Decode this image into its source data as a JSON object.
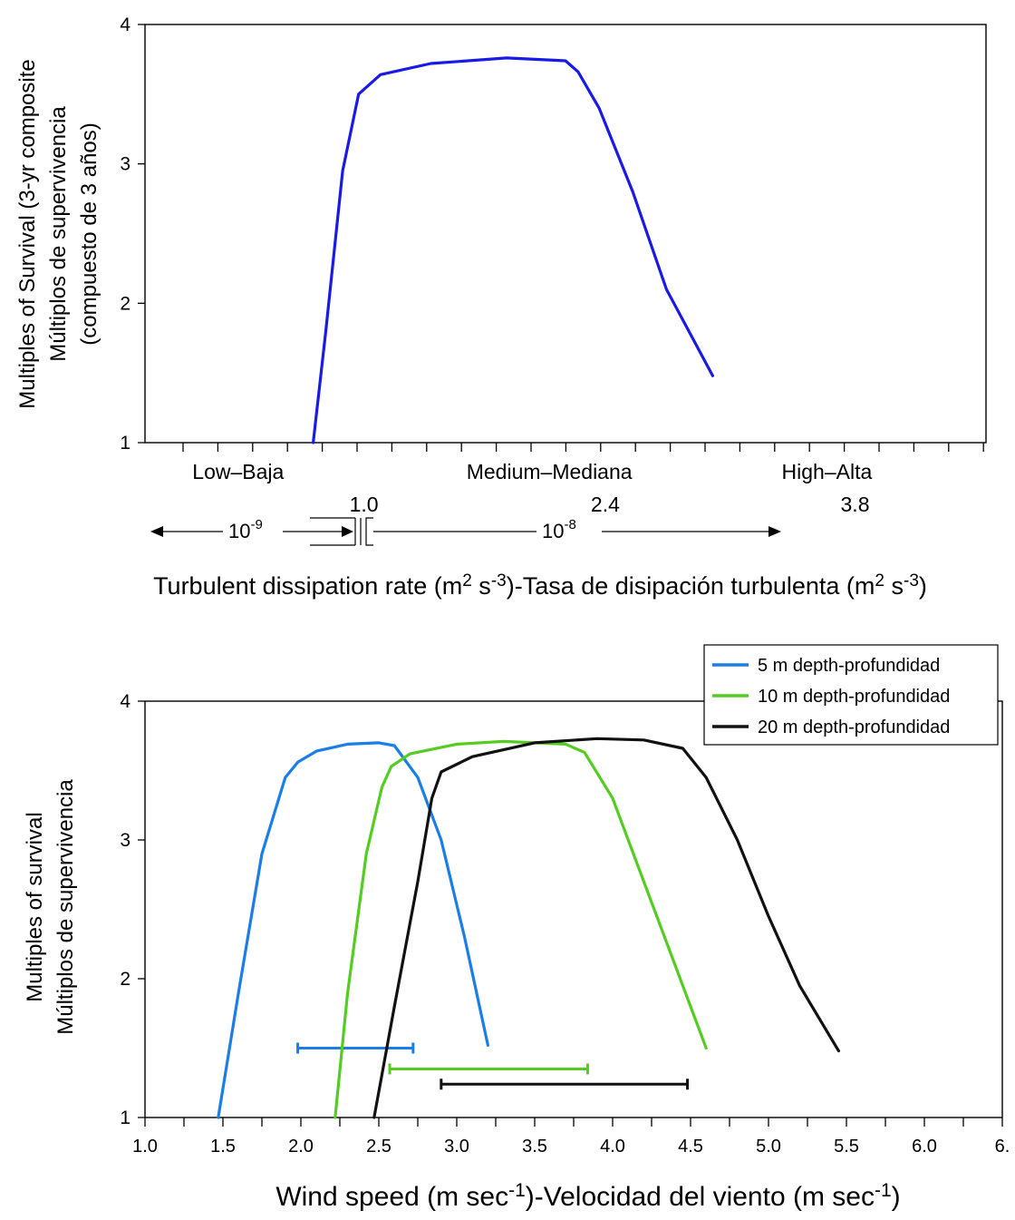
{
  "chart_data": [
    {
      "type": "line",
      "ylabel_lines": [
        "Multiples of Survival (3-yr composite",
        "Múltiplos de supervivencia",
        "(compuesto de 3 años)"
      ],
      "ylim": [
        1,
        4
      ],
      "y_ticks": [
        "1",
        "2",
        "3",
        "4"
      ],
      "xlim": [
        0,
        1
      ],
      "category_labels": [
        {
          "text": "Low–Baja",
          "x": 0.1
        },
        {
          "text": "Medium–Mediana",
          "x": 0.47
        },
        {
          "text": "High–Alta",
          "x": 0.8
        }
      ],
      "value_labels": [
        {
          "text": "1.0",
          "x": 0.256
        },
        {
          "text": "2.4",
          "x": 0.543
        },
        {
          "text": "3.8",
          "x": 0.84
        }
      ],
      "rate_labels": {
        "left_base": "10",
        "left_exp": "-9",
        "right_base": "10",
        "right_exp": "-8"
      },
      "xlabel": {
        "part1": "Turbulent dissipation rate (m",
        "sup1": "2",
        "part2": " s",
        "sup2": "-3",
        "part3": ")-Tasa de disipación turbulenta  (m",
        "sup3": "2",
        "part4": " s",
        "sup4": "-3",
        "part5": ")"
      },
      "series": [
        {
          "color": "#1a1ae6",
          "points": [
            [
              0.2,
              1.0
            ],
            [
              0.215,
              1.8
            ],
            [
              0.235,
              2.95
            ],
            [
              0.254,
              3.5
            ],
            [
              0.28,
              3.64
            ],
            [
              0.34,
              3.72
            ],
            [
              0.43,
              3.76
            ],
            [
              0.5,
              3.74
            ],
            [
              0.515,
              3.66
            ],
            [
              0.54,
              3.4
            ],
            [
              0.58,
              2.8
            ],
            [
              0.62,
              2.1
            ],
            [
              0.675,
              1.48
            ]
          ]
        }
      ]
    },
    {
      "type": "line",
      "ylabel_lines": [
        "Multiples of survival",
        "Múltiplos de supervivencia"
      ],
      "ylim": [
        1,
        4
      ],
      "y_ticks": [
        "1",
        "2",
        "3",
        "4"
      ],
      "xlim": [
        1.0,
        6.5
      ],
      "x_ticks": [
        "1.0",
        "1.5",
        "2.0",
        "2.5",
        "3.0",
        "3.5",
        "4.0",
        "4.5",
        "5.0",
        "5.5",
        "6.0",
        "6."
      ],
      "xlabel": {
        "part1": "Wind speed (m sec",
        "sup1": "-1",
        "part2": ")-Velocidad del viento (m sec",
        "sup2": "-1",
        "part3": ")"
      },
      "legend_position": "top-right",
      "series": [
        {
          "name": "5 m depth-profundidad",
          "color": "#1a7ee6",
          "points": [
            [
              1.47,
              1.0
            ],
            [
              1.6,
              1.9
            ],
            [
              1.75,
              2.9
            ],
            [
              1.9,
              3.45
            ],
            [
              1.98,
              3.56
            ],
            [
              2.1,
              3.64
            ],
            [
              2.3,
              3.69
            ],
            [
              2.5,
              3.7
            ],
            [
              2.6,
              3.68
            ],
            [
              2.75,
              3.45
            ],
            [
              2.9,
              3.0
            ],
            [
              3.05,
              2.3
            ],
            [
              3.2,
              1.52
            ]
          ],
          "range": [
            1.98,
            2.72
          ],
          "range_y": 1.5
        },
        {
          "name": "10 m depth-profundidad",
          "color": "#55cc22",
          "points": [
            [
              2.22,
              1.0
            ],
            [
              2.3,
              1.9
            ],
            [
              2.42,
              2.9
            ],
            [
              2.52,
              3.38
            ],
            [
              2.58,
              3.53
            ],
            [
              2.7,
              3.62
            ],
            [
              3.0,
              3.69
            ],
            [
              3.3,
              3.71
            ],
            [
              3.7,
              3.69
            ],
            [
              3.82,
              3.63
            ],
            [
              4.0,
              3.3
            ],
            [
              4.2,
              2.7
            ],
            [
              4.4,
              2.1
            ],
            [
              4.6,
              1.5
            ]
          ],
          "range": [
            2.57,
            3.84
          ],
          "range_y": 1.35
        },
        {
          "name": "20 m depth-profundidad",
          "color": "#111111",
          "points": [
            [
              2.47,
              1.0
            ],
            [
              2.6,
              1.8
            ],
            [
              2.75,
              2.7
            ],
            [
              2.84,
              3.3
            ],
            [
              2.9,
              3.49
            ],
            [
              3.1,
              3.6
            ],
            [
              3.5,
              3.7
            ],
            [
              3.9,
              3.73
            ],
            [
              4.2,
              3.72
            ],
            [
              4.45,
              3.66
            ],
            [
              4.6,
              3.45
            ],
            [
              4.8,
              3.0
            ],
            [
              5.0,
              2.45
            ],
            [
              5.2,
              1.95
            ],
            [
              5.45,
              1.48
            ]
          ],
          "range": [
            2.9,
            4.48
          ],
          "range_y": 1.24
        }
      ]
    }
  ]
}
